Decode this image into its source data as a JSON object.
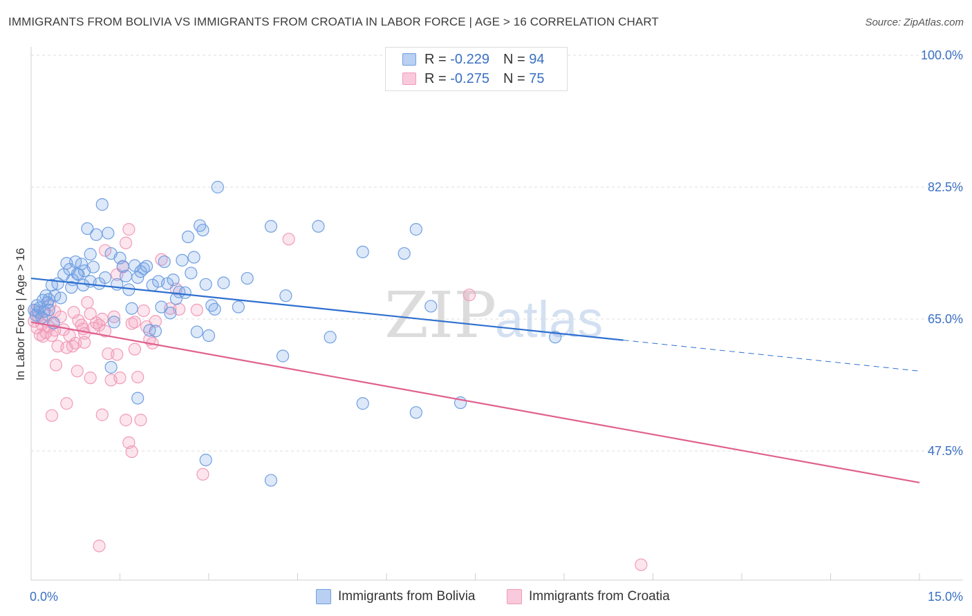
{
  "header": {
    "title": "IMMIGRANTS FROM BOLIVIA VS IMMIGRANTS FROM CROATIA IN LABOR FORCE | AGE > 16 CORRELATION CHART",
    "source": "Source: ZipAtlas.com"
  },
  "legend": {
    "bolivia": {
      "r_label": "R =",
      "r_value": "-0.229",
      "n_label": "N =",
      "n_value": "94"
    },
    "croatia": {
      "r_label": "R =",
      "r_value": "-0.275",
      "n_label": "N =",
      "n_value": "75"
    }
  },
  "bottom_legend": {
    "bolivia": "Immigrants from Bolivia",
    "croatia": "Immigrants from Croatia"
  },
  "watermark": {
    "zip": "ZIP",
    "atlas": "atlas"
  },
  "chart_data": {
    "type": "scatter",
    "title": "IMMIGRANTS FROM BOLIVIA VS IMMIGRANTS FROM CROATIA IN LABOR FORCE | AGE > 16 CORRELATION CHART",
    "ylabel": "In Labor Force | Age > 16",
    "xlabel": "",
    "xlim": [
      0,
      15
    ],
    "ylim": [
      31,
      102
    ],
    "x_tick_labels": [
      "0.0%",
      "15.0%"
    ],
    "y_ticks": [
      47.5,
      65.0,
      82.5,
      100.0
    ],
    "y_tick_labels": [
      "47.5%",
      "65.0%",
      "82.5%",
      "100.0%"
    ],
    "grid": true,
    "legend_position": "top-center",
    "colors": {
      "bolivia": "#6f9fe0",
      "croatia": "#f19ab8",
      "bolivia_line": "#2d6fd0",
      "croatia_line": "#e0608e",
      "axis_text": "#3a6fc4"
    },
    "series": [
      {
        "name": "Immigrants from Bolivia",
        "color": "#6f9fe0",
        "trend": {
          "x": [
            0.0,
            10.0
          ],
          "y": [
            70.4,
            62.2
          ],
          "dashed_to": [
            15.0,
            58.1
          ]
        },
        "points": [
          [
            0.05,
            66.2
          ],
          [
            0.08,
            65.5
          ],
          [
            0.1,
            66.8
          ],
          [
            0.12,
            65.9
          ],
          [
            0.15,
            66.5
          ],
          [
            0.18,
            65.2
          ],
          [
            0.2,
            67.5
          ],
          [
            0.22,
            66.0
          ],
          [
            0.25,
            68.1
          ],
          [
            0.28,
            67.2
          ],
          [
            0.3,
            67.6
          ],
          [
            0.35,
            69.5
          ],
          [
            0.38,
            64.5
          ],
          [
            0.4,
            68.1
          ],
          [
            0.45,
            69.7
          ],
          [
            0.5,
            67.8
          ],
          [
            0.55,
            70.9
          ],
          [
            0.6,
            72.4
          ],
          [
            0.65,
            71.6
          ],
          [
            0.68,
            69.2
          ],
          [
            0.7,
            70.2
          ],
          [
            0.75,
            72.6
          ],
          [
            0.78,
            71.0
          ],
          [
            0.8,
            70.9
          ],
          [
            0.85,
            72.3
          ],
          [
            0.88,
            69.5
          ],
          [
            0.95,
            77.0
          ],
          [
            1.0,
            73.6
          ],
          [
            1.05,
            71.9
          ],
          [
            1.1,
            76.2
          ],
          [
            1.15,
            69.7
          ],
          [
            1.2,
            80.2
          ],
          [
            1.25,
            70.5
          ],
          [
            1.3,
            76.4
          ],
          [
            1.35,
            73.7
          ],
          [
            1.4,
            64.6
          ],
          [
            1.45,
            69.6
          ],
          [
            1.5,
            73.1
          ],
          [
            1.55,
            72.0
          ],
          [
            1.6,
            70.7
          ],
          [
            1.65,
            68.9
          ],
          [
            1.7,
            66.4
          ],
          [
            1.75,
            72.1
          ],
          [
            1.8,
            70.5
          ],
          [
            1.85,
            71.3
          ],
          [
            1.9,
            71.7
          ],
          [
            1.95,
            72.0
          ],
          [
            2.0,
            63.5
          ],
          [
            2.05,
            69.5
          ],
          [
            2.1,
            63.4
          ],
          [
            2.15,
            70.0
          ],
          [
            2.2,
            66.6
          ],
          [
            2.25,
            72.6
          ],
          [
            2.3,
            69.7
          ],
          [
            2.35,
            65.8
          ],
          [
            2.4,
            70.2
          ],
          [
            2.45,
            67.7
          ],
          [
            2.5,
            68.6
          ],
          [
            2.55,
            72.8
          ],
          [
            2.6,
            68.5
          ],
          [
            2.65,
            75.9
          ],
          [
            2.7,
            71.1
          ],
          [
            2.75,
            73.2
          ],
          [
            2.8,
            63.3
          ],
          [
            2.85,
            77.4
          ],
          [
            2.9,
            76.8
          ],
          [
            2.95,
            69.6
          ],
          [
            3.0,
            62.8
          ],
          [
            3.05,
            66.8
          ],
          [
            3.1,
            66.3
          ],
          [
            3.15,
            82.5
          ],
          [
            3.25,
            69.8
          ],
          [
            3.5,
            66.6
          ],
          [
            3.65,
            70.4
          ],
          [
            4.05,
            77.3
          ],
          [
            4.3,
            68.1
          ],
          [
            4.85,
            77.3
          ],
          [
            5.05,
            62.6
          ],
          [
            5.6,
            73.9
          ],
          [
            6.3,
            73.7
          ],
          [
            6.5,
            76.9
          ],
          [
            6.75,
            66.7
          ],
          [
            8.85,
            62.6
          ],
          [
            1.35,
            58.6
          ],
          [
            1.8,
            54.5
          ],
          [
            2.95,
            46.3
          ],
          [
            4.05,
            43.6
          ],
          [
            5.6,
            53.8
          ],
          [
            6.5,
            52.6
          ],
          [
            7.25,
            53.9
          ],
          [
            4.25,
            60.1
          ],
          [
            0.3,
            66.2
          ],
          [
            0.9,
            71.4
          ],
          [
            1.0,
            70.0
          ]
        ]
      },
      {
        "name": "Immigrants from Croatia",
        "color": "#f19ab8",
        "trend": {
          "x": [
            0.0,
            15.0
          ],
          "y": [
            64.6,
            43.3
          ]
        },
        "points": [
          [
            0.05,
            64.7
          ],
          [
            0.08,
            66.1
          ],
          [
            0.1,
            63.8
          ],
          [
            0.12,
            65.4
          ],
          [
            0.15,
            62.9
          ],
          [
            0.18,
            64.3
          ],
          [
            0.2,
            62.7
          ],
          [
            0.22,
            65.0
          ],
          [
            0.25,
            63.2
          ],
          [
            0.28,
            65.5
          ],
          [
            0.3,
            64.0
          ],
          [
            0.32,
            66.9
          ],
          [
            0.35,
            62.8
          ],
          [
            0.38,
            64.4
          ],
          [
            0.4,
            63.5
          ],
          [
            0.42,
            58.9
          ],
          [
            0.45,
            61.4
          ],
          [
            0.5,
            65.3
          ],
          [
            0.55,
            63.6
          ],
          [
            0.6,
            61.2
          ],
          [
            0.65,
            62.8
          ],
          [
            0.7,
            61.4
          ],
          [
            0.72,
            65.9
          ],
          [
            0.75,
            61.8
          ],
          [
            0.78,
            58.1
          ],
          [
            0.8,
            64.8
          ],
          [
            0.85,
            64.2
          ],
          [
            0.88,
            63.7
          ],
          [
            0.9,
            63.1
          ],
          [
            0.95,
            67.2
          ],
          [
            1.0,
            65.7
          ],
          [
            1.05,
            63.8
          ],
          [
            1.1,
            64.5
          ],
          [
            1.15,
            64.2
          ],
          [
            1.2,
            65.0
          ],
          [
            1.25,
            63.4
          ],
          [
            1.3,
            60.4
          ],
          [
            1.35,
            56.9
          ],
          [
            1.4,
            65.3
          ],
          [
            1.45,
            60.3
          ],
          [
            1.5,
            57.2
          ],
          [
            1.55,
            71.9
          ],
          [
            1.6,
            75.1
          ],
          [
            1.65,
            76.9
          ],
          [
            1.7,
            64.4
          ],
          [
            1.75,
            64.6
          ],
          [
            1.8,
            57.3
          ],
          [
            1.85,
            51.6
          ],
          [
            1.9,
            66.1
          ],
          [
            1.95,
            64.0
          ],
          [
            2.0,
            62.3
          ],
          [
            2.05,
            61.8
          ],
          [
            2.1,
            64.7
          ],
          [
            2.2,
            72.9
          ],
          [
            2.35,
            66.4
          ],
          [
            2.45,
            69.0
          ],
          [
            2.5,
            66.3
          ],
          [
            2.8,
            66.2
          ],
          [
            2.9,
            44.4
          ],
          [
            4.35,
            75.6
          ],
          [
            7.4,
            68.2
          ],
          [
            10.3,
            32.4
          ],
          [
            1.15,
            34.9
          ],
          [
            0.35,
            52.2
          ],
          [
            0.6,
            53.8
          ],
          [
            1.2,
            52.3
          ],
          [
            1.6,
            51.6
          ],
          [
            1.65,
            48.6
          ],
          [
            1.7,
            47.4
          ],
          [
            1.0,
            57.2
          ],
          [
            1.25,
            74.1
          ],
          [
            1.45,
            70.9
          ],
          [
            0.4,
            66.0
          ],
          [
            0.9,
            61.9
          ],
          [
            1.75,
            61.0
          ]
        ]
      }
    ]
  }
}
